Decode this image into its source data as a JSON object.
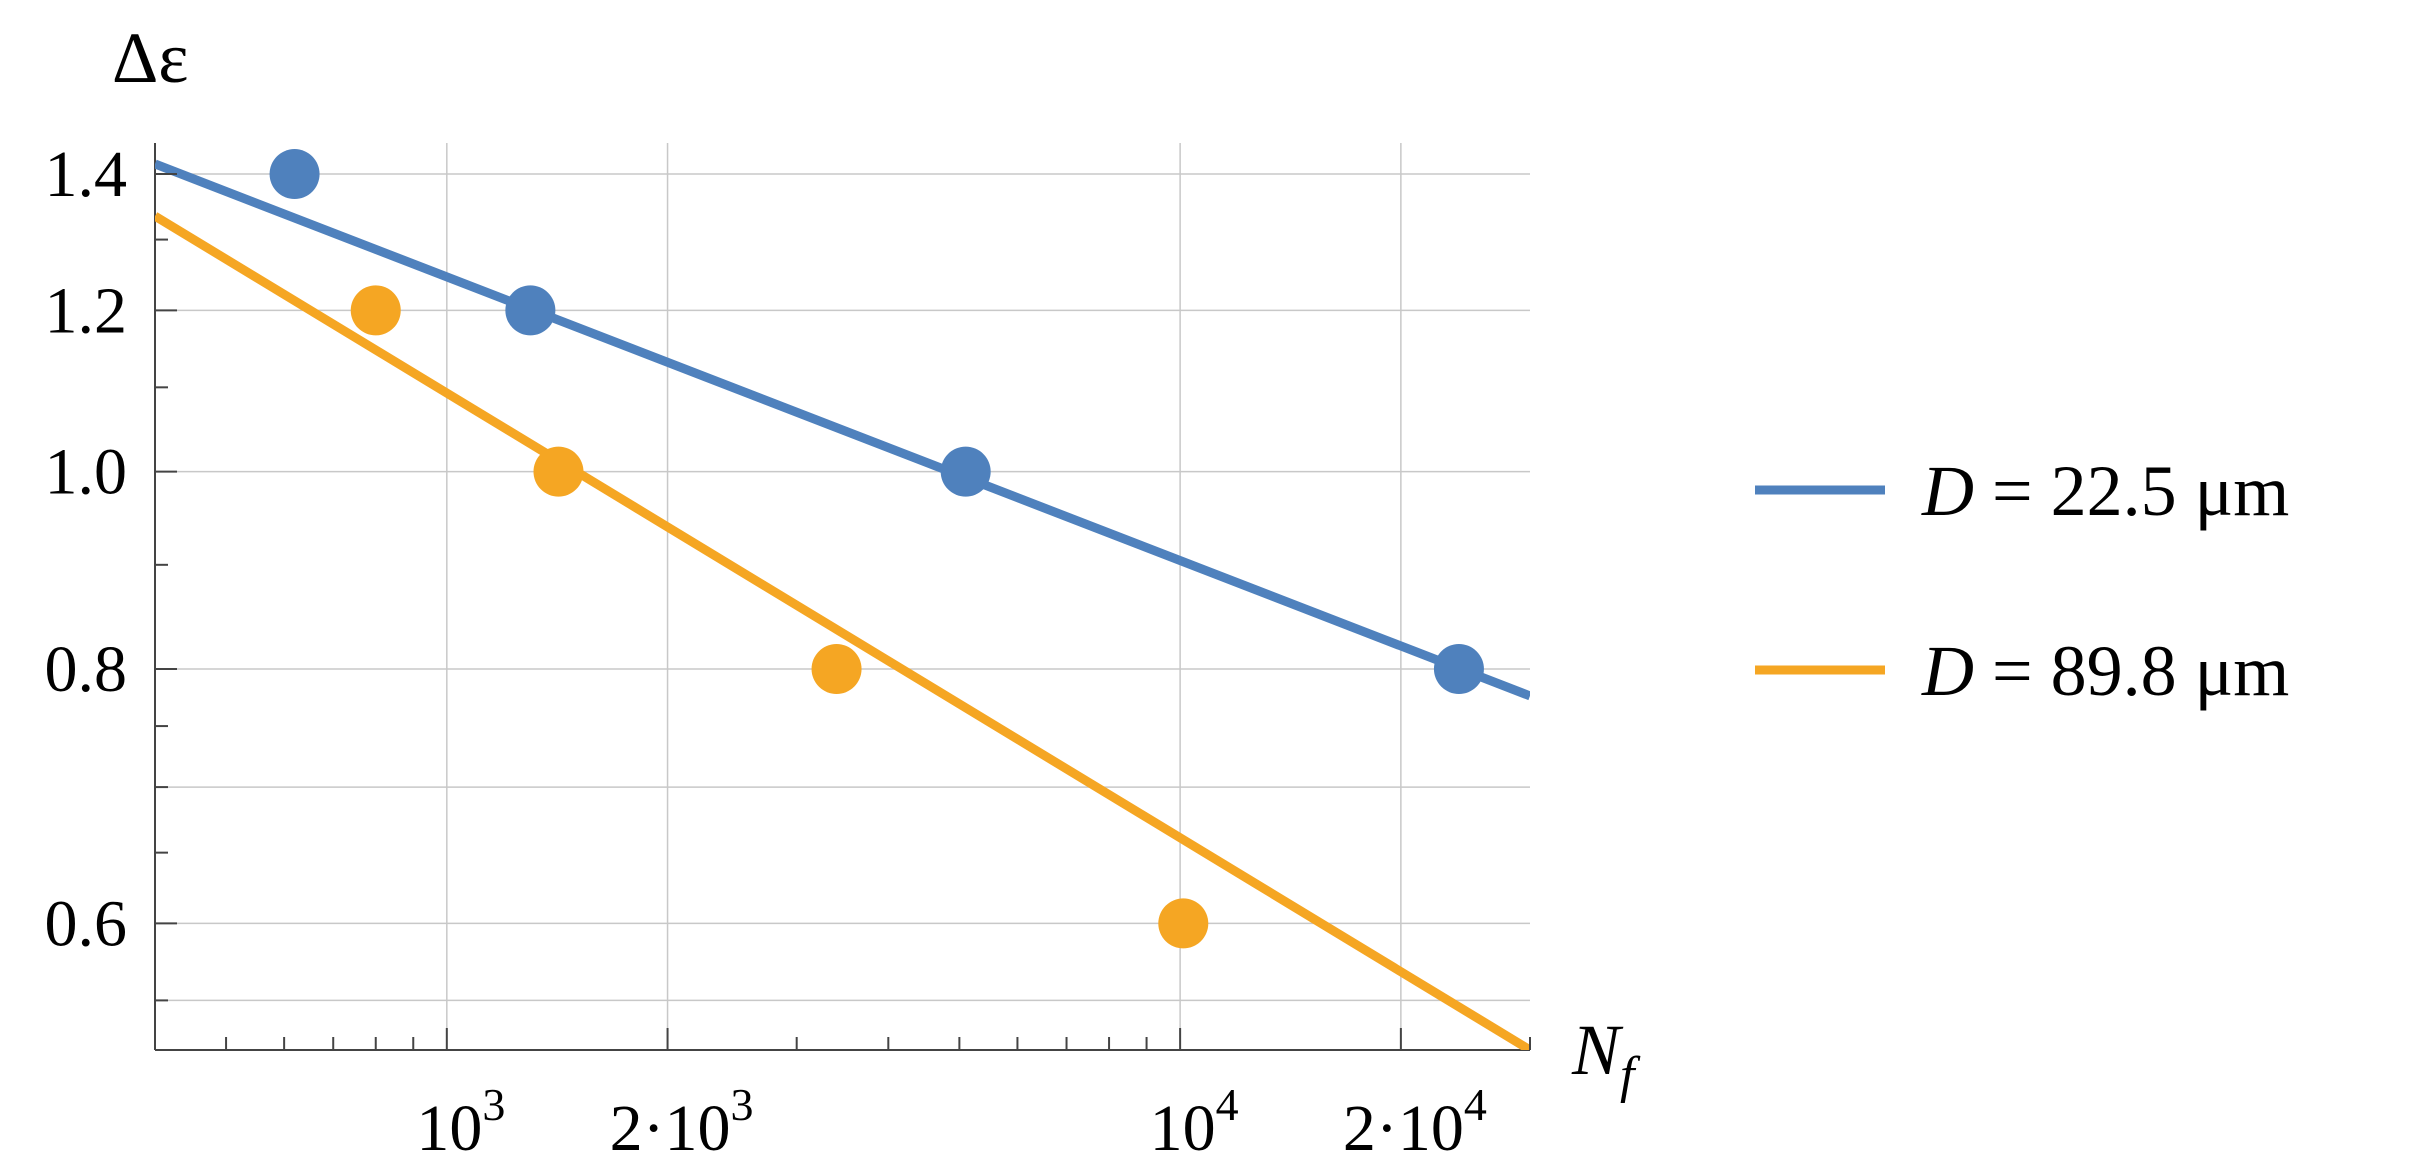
{
  "chart_data": {
    "type": "scatter",
    "xscale": "log",
    "yscale": "log",
    "xlabel": "N",
    "xlabel_sub": "f",
    "ylabel": "Δε",
    "xlim": [
      400,
      30000
    ],
    "ylim": [
      0.52,
      1.45
    ],
    "xticks": [
      {
        "value": 1000,
        "base": "10",
        "exp": "3"
      },
      {
        "value": 2000,
        "base": "2·10",
        "exp": "3"
      },
      {
        "value": 10000,
        "base": "10",
        "exp": "4"
      },
      {
        "value": 20000,
        "base": "2·10",
        "exp": "4"
      }
    ],
    "yticks": [
      {
        "value": 0.6,
        "label": "0.6"
      },
      {
        "value": 0.8,
        "label": "0.8"
      },
      {
        "value": 1.0,
        "label": "1.0"
      },
      {
        "value": 1.2,
        "label": "1.2"
      },
      {
        "value": 1.4,
        "label": "1.4"
      }
    ],
    "grid": true,
    "legend_position": "right",
    "series": [
      {
        "name_prefix": "D",
        "name_value": " = 22.5 μm",
        "color": "#4f81bd",
        "points": [
          {
            "x": 620,
            "y": 1.4
          },
          {
            "x": 1300,
            "y": 1.2
          },
          {
            "x": 5100,
            "y": 1.0
          },
          {
            "x": 24000,
            "y": 0.8
          }
        ],
        "fit": [
          {
            "x": 400,
            "y": 1.416
          },
          {
            "x": 30000,
            "y": 0.776
          }
        ]
      },
      {
        "name_prefix": "D",
        "name_value": " = 89.8 μm",
        "color": "#f5a623",
        "points": [
          {
            "x": 800,
            "y": 1.2
          },
          {
            "x": 1420,
            "y": 1.0
          },
          {
            "x": 3400,
            "y": 0.8
          },
          {
            "x": 10100,
            "y": 0.6
          }
        ],
        "fit": [
          {
            "x": 400,
            "y": 1.335
          },
          {
            "x": 30000,
            "y": 0.52
          }
        ]
      }
    ]
  }
}
